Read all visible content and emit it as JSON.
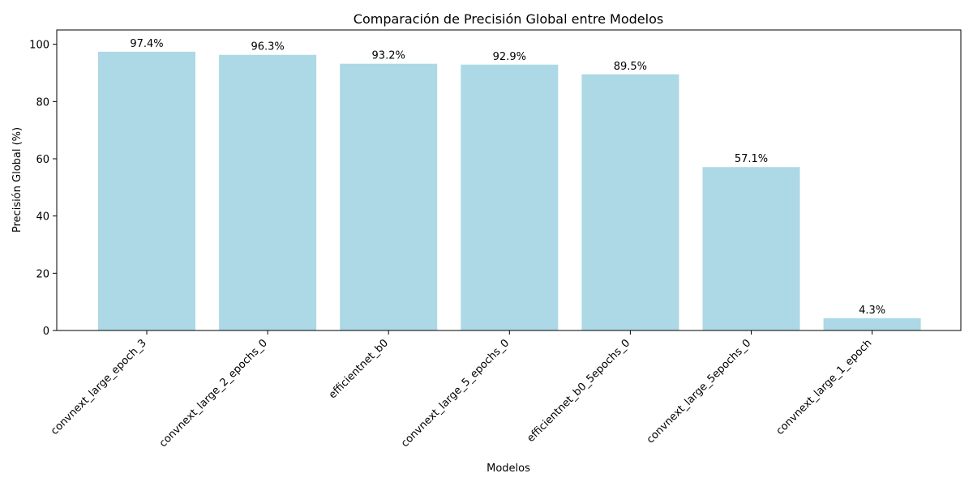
{
  "chart_data": {
    "type": "bar",
    "title": "Comparación de Precisión Global entre Modelos",
    "xlabel": "Modelos",
    "ylabel": "Precisión Global (%)",
    "categories": [
      "convnext_large_epoch_3",
      "convnext_large_2_epochs_0",
      "efficientnet_b0",
      "convnext_large_5_epochs_0",
      "efficientnet_b0_5epochs_0",
      "convnext_large_5epochs_0",
      "convnext_large_1_epoch"
    ],
    "values": [
      97.4,
      96.3,
      93.2,
      92.9,
      89.5,
      57.1,
      4.3
    ],
    "data_labels": [
      "97.4%",
      "96.3%",
      "93.2%",
      "92.9%",
      "89.5%",
      "57.1%",
      "4.3%"
    ],
    "ylim": [
      0,
      105
    ],
    "yticks": [
      0,
      20,
      40,
      60,
      80,
      100
    ],
    "bar_color": "#add8e6",
    "grid": false,
    "legend": "none"
  }
}
